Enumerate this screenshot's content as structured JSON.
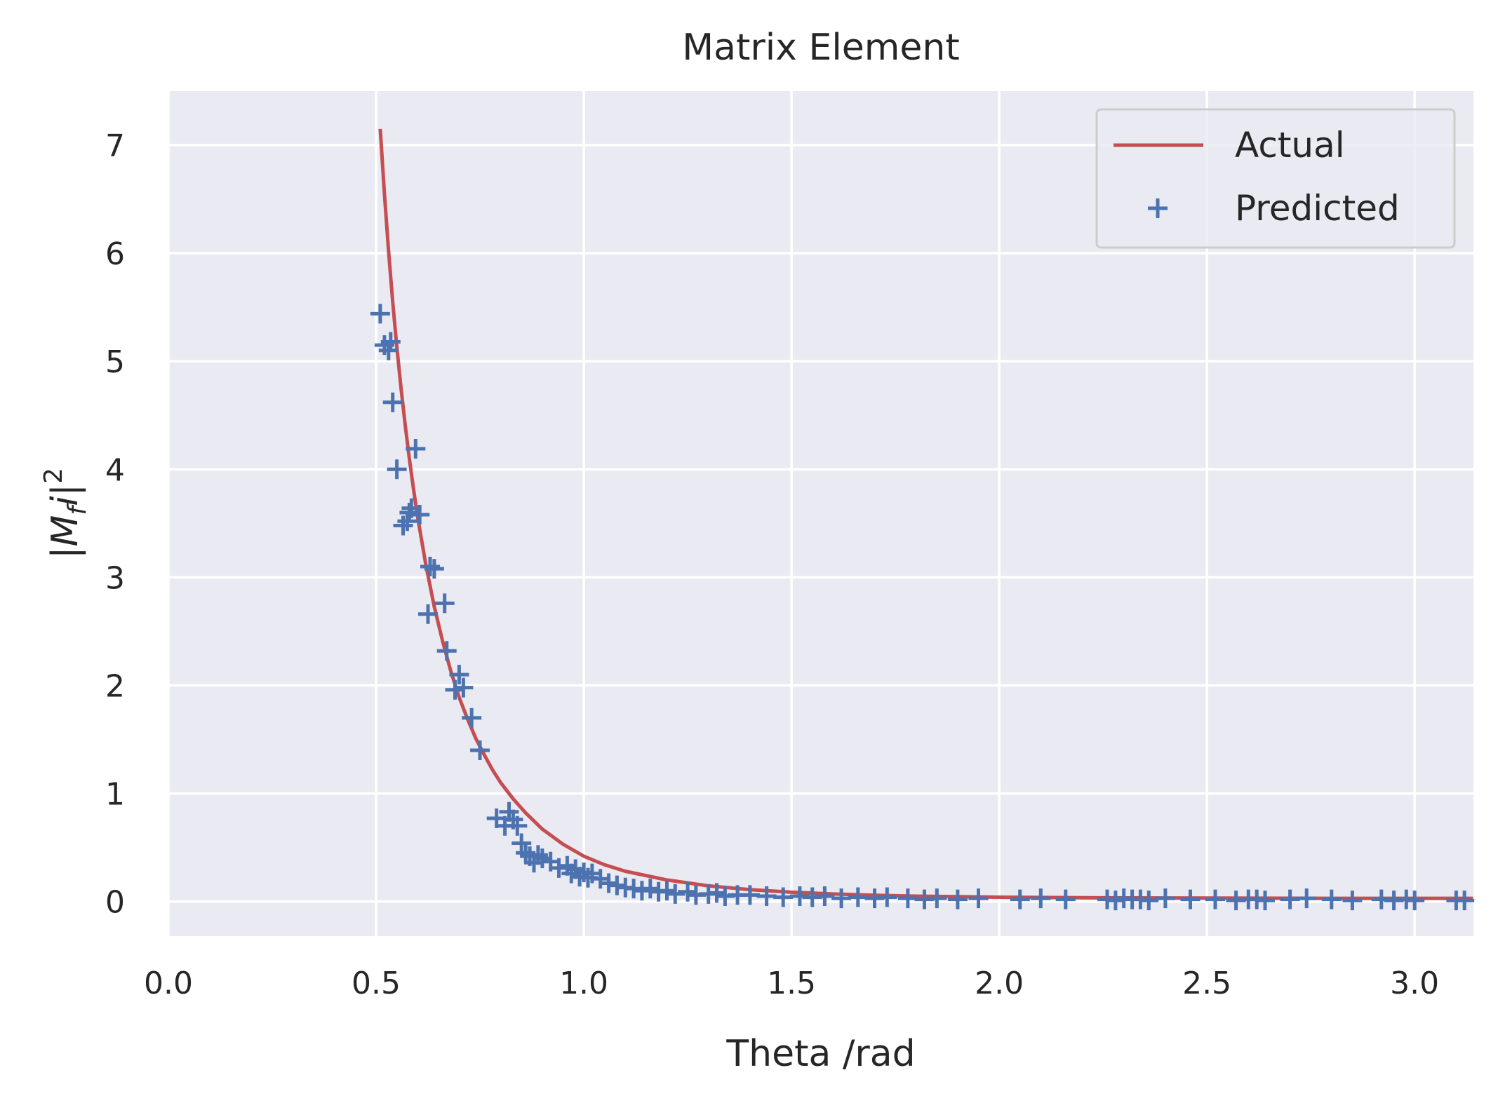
{
  "chart_data": {
    "type": "scatter",
    "title": "Matrix Element",
    "xlabel": "Theta /rad",
    "ylabel": "|M_fi|^2",
    "ylabel_parts": {
      "open": "|",
      "main": "M",
      "sub": "f",
      "mid": "i",
      "close": "|",
      "sup": "2"
    },
    "xlim": [
      0.0,
      3.14159
    ],
    "ylim": [
      -0.32,
      7.5
    ],
    "xticks": [
      0.0,
      0.5,
      1.0,
      1.5,
      2.0,
      2.5,
      3.0
    ],
    "xtick_labels": [
      "0.0",
      "0.5",
      "1.0",
      "1.5",
      "2.0",
      "2.5",
      "3.0"
    ],
    "yticks": [
      0,
      1,
      2,
      3,
      4,
      5,
      6,
      7
    ],
    "ytick_labels": [
      "0",
      "1",
      "2",
      "3",
      "4",
      "5",
      "6",
      "7"
    ],
    "grid": true,
    "legend_position": "top-right",
    "colors": {
      "background": "#eaeaf2",
      "grid": "#ffffff",
      "actual": "#c44e52",
      "predicted": "#4c72b0",
      "text": "#262626"
    },
    "series": [
      {
        "name": "Actual",
        "kind": "line",
        "x": [
          0.51,
          0.52,
          0.53,
          0.54,
          0.55,
          0.56,
          0.57,
          0.58,
          0.59,
          0.6,
          0.62,
          0.64,
          0.66,
          0.68,
          0.7,
          0.72,
          0.74,
          0.76,
          0.78,
          0.8,
          0.83,
          0.86,
          0.9,
          0.95,
          1.0,
          1.05,
          1.1,
          1.2,
          1.3,
          1.4,
          1.5,
          1.6,
          1.7,
          1.8,
          2.0,
          2.2,
          2.4,
          2.6,
          2.8,
          3.0,
          3.14
        ],
        "y": [
          7.15,
          6.55,
          6.02,
          5.55,
          5.13,
          4.75,
          4.41,
          4.1,
          3.82,
          3.56,
          3.11,
          2.73,
          2.41,
          2.13,
          1.89,
          1.69,
          1.51,
          1.36,
          1.22,
          1.1,
          0.95,
          0.82,
          0.67,
          0.53,
          0.42,
          0.34,
          0.28,
          0.2,
          0.145,
          0.11,
          0.086,
          0.07,
          0.058,
          0.05,
          0.04,
          0.035,
          0.033,
          0.031,
          0.03,
          0.03,
          0.03
        ]
      },
      {
        "name": "Predicted",
        "kind": "scatter",
        "marker": "+",
        "x": [
          0.51,
          0.52,
          0.53,
          0.535,
          0.54,
          0.55,
          0.565,
          0.575,
          0.58,
          0.585,
          0.595,
          0.605,
          0.625,
          0.63,
          0.64,
          0.665,
          0.67,
          0.69,
          0.7,
          0.71,
          0.73,
          0.75,
          0.79,
          0.81,
          0.82,
          0.83,
          0.84,
          0.85,
          0.86,
          0.87,
          0.88,
          0.89,
          0.9,
          0.92,
          0.94,
          0.96,
          0.97,
          0.98,
          0.99,
          1.0,
          1.01,
          1.02,
          1.04,
          1.06,
          1.08,
          1.1,
          1.12,
          1.14,
          1.16,
          1.18,
          1.2,
          1.22,
          1.25,
          1.27,
          1.3,
          1.32,
          1.34,
          1.37,
          1.4,
          1.44,
          1.48,
          1.52,
          1.55,
          1.58,
          1.62,
          1.66,
          1.7,
          1.73,
          1.78,
          1.82,
          1.85,
          1.9,
          1.95,
          2.05,
          2.1,
          2.16,
          2.26,
          2.28,
          2.3,
          2.32,
          2.34,
          2.36,
          2.4,
          2.46,
          2.52,
          2.57,
          2.6,
          2.62,
          2.64,
          2.7,
          2.74,
          2.8,
          2.85,
          2.92,
          2.95,
          2.98,
          3.0,
          3.1,
          3.12
        ],
        "y": [
          5.44,
          5.15,
          5.1,
          5.18,
          4.62,
          4.0,
          3.48,
          3.52,
          3.6,
          3.64,
          4.19,
          3.58,
          2.66,
          3.1,
          3.08,
          2.76,
          2.32,
          1.96,
          2.1,
          1.98,
          1.7,
          1.4,
          0.77,
          0.7,
          0.83,
          0.76,
          0.7,
          0.54,
          0.45,
          0.42,
          0.36,
          0.43,
          0.4,
          0.37,
          0.31,
          0.33,
          0.26,
          0.3,
          0.23,
          0.27,
          0.22,
          0.26,
          0.21,
          0.17,
          0.15,
          0.13,
          0.12,
          0.1,
          0.12,
          0.09,
          0.1,
          0.07,
          0.09,
          0.06,
          0.07,
          0.08,
          0.05,
          0.06,
          0.06,
          0.05,
          0.04,
          0.05,
          0.04,
          0.05,
          0.03,
          0.04,
          0.03,
          0.04,
          0.03,
          0.02,
          0.03,
          0.02,
          0.03,
          0.02,
          0.03,
          0.02,
          0.02,
          0.01,
          0.03,
          0.02,
          0.02,
          0.01,
          0.03,
          0.02,
          0.02,
          0.01,
          0.02,
          0.02,
          0.01,
          0.02,
          0.03,
          0.02,
          0.01,
          0.02,
          0.01,
          0.02,
          0.01,
          0.01,
          0.01
        ]
      }
    ]
  }
}
